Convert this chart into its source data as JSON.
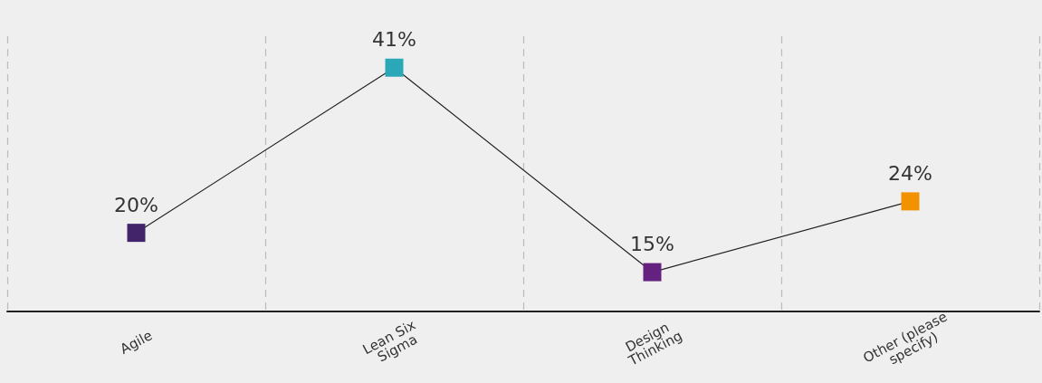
{
  "chart_data": {
    "type": "line",
    "categories": [
      "Agile",
      "Lean Six Sigma",
      "Design Thinking",
      "Other (please specify)"
    ],
    "values": [
      20,
      41,
      15,
      24
    ],
    "colors": [
      "#42246b",
      "#2aa8b8",
      "#64217f",
      "#f39200"
    ],
    "color": "#222222",
    "value_labels": [
      "20%",
      "41%",
      "15%",
      "24%"
    ],
    "ylim": [
      10,
      45
    ],
    "tick_labels": "x",
    "grid": "x",
    "marker": "square",
    "line_style": "solid"
  }
}
